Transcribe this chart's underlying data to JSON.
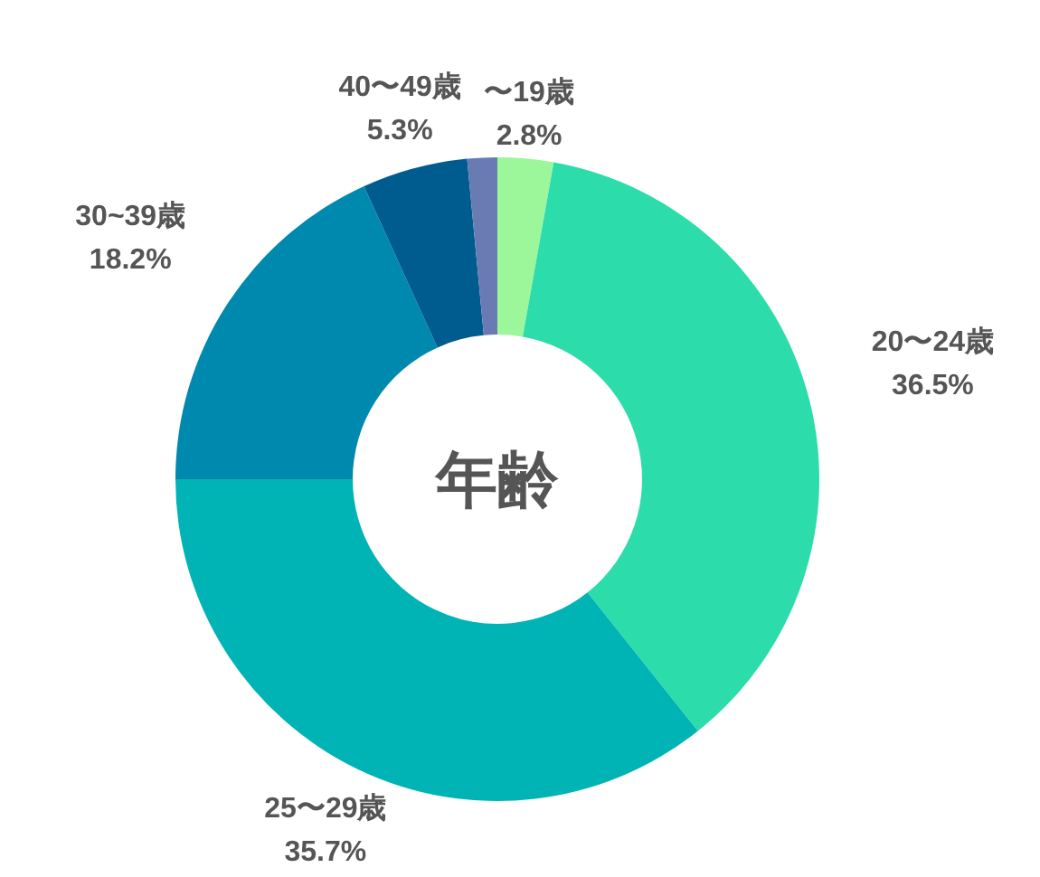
{
  "chart_data": {
    "type": "donut",
    "title": "年齢",
    "categories": [
      "〜19歳",
      "20〜24歳",
      "25〜29歳",
      "30~39歳",
      "40〜49歳",
      null
    ],
    "values": [
      2.8,
      36.5,
      35.7,
      18.2,
      5.3,
      1.5
    ],
    "value_labels": [
      "2.8%",
      "36.5%",
      "35.7%",
      "18.2%",
      "5.3%",
      null
    ],
    "colors": [
      "#9cf79a",
      "#2ddcab",
      "#00b4b6",
      "#0089ae",
      "#005b8f",
      "#6a7bb3"
    ],
    "legend": false
  }
}
